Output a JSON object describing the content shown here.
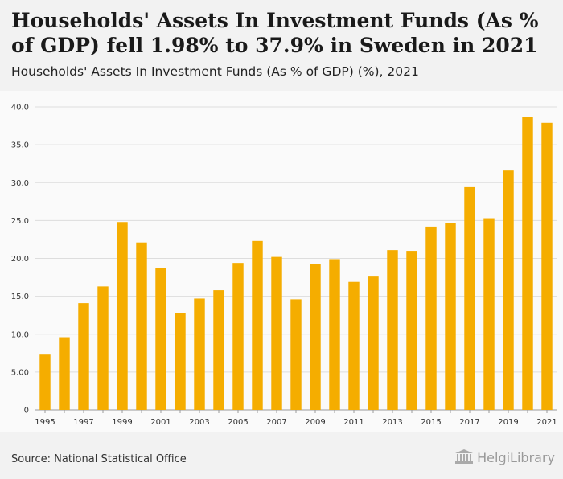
{
  "header": {
    "title": "Households' Assets In Investment Funds (As % of GDP) fell 1.98% to 37.9% in Sweden in 2021",
    "subtitle": "Households' Assets In Investment Funds (As % of GDP) (%), 2021"
  },
  "footer": {
    "source": "Source: National Statistical Office",
    "logo_text": "HelgiLibrary"
  },
  "colors": {
    "bar": "#f5ad00",
    "grid": "#dddddd",
    "axis_text": "#333333"
  },
  "chart_data": {
    "type": "bar",
    "title": "Households' Assets In Investment Funds (As % of GDP) (%), 2021",
    "xlabel": "",
    "ylabel": "",
    "ylim": [
      0,
      40
    ],
    "yticks": [
      0,
      5,
      10,
      15,
      20,
      25,
      30,
      35,
      40
    ],
    "ytick_labels": [
      "0",
      "5.00",
      "10.0",
      "15.0",
      "20.0",
      "25.0",
      "30.0",
      "35.0",
      "40.0"
    ],
    "categories": [
      "1995",
      "1996",
      "1997",
      "1998",
      "1999",
      "2000",
      "2001",
      "2002",
      "2003",
      "2004",
      "2005",
      "2006",
      "2007",
      "2008",
      "2009",
      "2010",
      "2011",
      "2012",
      "2013",
      "2014",
      "2015",
      "2016",
      "2017",
      "2018",
      "2019",
      "2020",
      "2021"
    ],
    "xtick_labels": [
      "1995",
      "",
      "1997",
      "",
      "1999",
      "",
      "2001",
      "",
      "2003",
      "",
      "2005",
      "",
      "2007",
      "",
      "2009",
      "",
      "2011",
      "",
      "2013",
      "",
      "2015",
      "",
      "2017",
      "",
      "2019",
      "",
      "2021"
    ],
    "values": [
      7.3,
      9.6,
      14.1,
      16.3,
      24.8,
      22.1,
      18.7,
      12.8,
      14.7,
      15.8,
      19.4,
      22.3,
      20.2,
      14.6,
      19.3,
      19.9,
      16.9,
      17.6,
      21.1,
      21.0,
      24.2,
      24.7,
      29.4,
      25.3,
      31.6,
      38.7,
      37.9
    ],
    "grid": true,
    "legend": "none"
  }
}
